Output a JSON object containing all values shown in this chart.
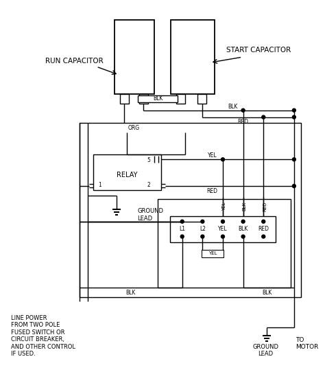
{
  "bg_color": "#ffffff",
  "line_color": "#000000",
  "run_cap_label": "RUN CAPACITOR",
  "start_cap_label": "START CAPACITOR",
  "relay_label": "RELAY",
  "line_power_label": "LINE POWER\nFROM TWO POLE\nFUSED SWITCH OR\nCIRCUIT BREAKER,\nAND OTHER CONTROL\nIF USED.",
  "terminal_labels": [
    "L1",
    "L2",
    "YEL",
    "BLK",
    "RED"
  ],
  "figsize": [
    4.74,
    5.58
  ],
  "dpi": 100
}
